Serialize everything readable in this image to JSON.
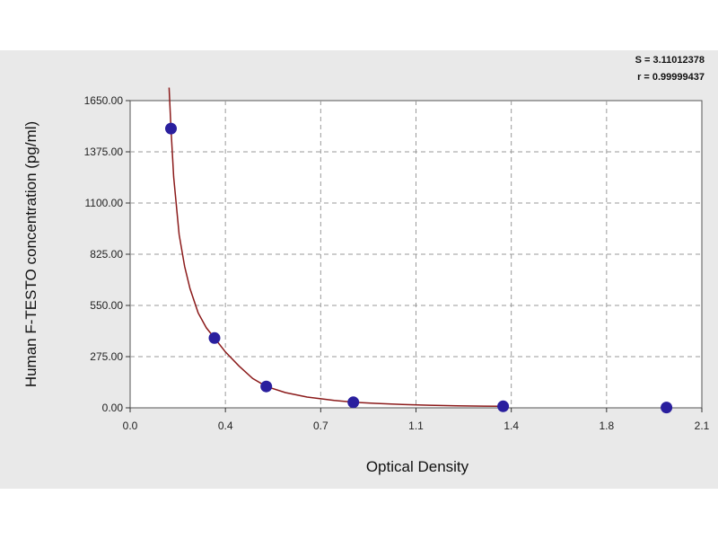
{
  "chart_data": {
    "type": "scatter",
    "xlabel": "Optical Density",
    "ylabel": "Human F-TESTO concentration (pg/ml)",
    "x_ticks": [
      "0.0",
      "0.4",
      "0.7",
      "1.1",
      "1.4",
      "1.8",
      "2.1"
    ],
    "y_ticks": [
      "0.00",
      "275.00",
      "550.00",
      "825.00",
      "1100.00",
      "1375.00",
      "1650.00"
    ],
    "xlim": [
      0.0,
      2.1
    ],
    "ylim": [
      0,
      1650
    ],
    "grid": true,
    "stats": [
      "S = 3.11012378",
      "r = 0.99999437"
    ],
    "series": [
      {
        "type": "scatter",
        "x": [
          0.15,
          0.31,
          0.5,
          0.82,
          1.37,
          1.97
        ],
        "y": [
          1500,
          375,
          115,
          30,
          8,
          2
        ],
        "color": "#2a1f9e"
      },
      {
        "type": "line",
        "x": [
          0.143,
          0.15,
          0.16,
          0.18,
          0.2,
          0.22,
          0.25,
          0.28,
          0.31,
          0.35,
          0.4,
          0.45,
          0.5,
          0.57,
          0.65,
          0.75,
          0.82,
          0.9,
          1.0,
          1.1,
          1.2,
          1.3,
          1.37
        ],
        "y": [
          1720,
          1500,
          1240,
          930,
          760,
          640,
          510,
          430,
          375,
          300,
          225,
          158,
          115,
          82,
          58,
          40,
          30,
          24,
          18,
          14,
          11,
          9,
          8
        ],
        "color": "#8b1a1a"
      }
    ]
  }
}
